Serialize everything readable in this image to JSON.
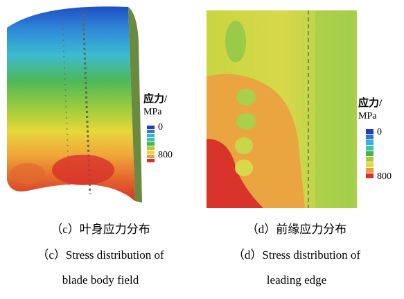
{
  "figures": [
    {
      "legend": {
        "title": "应力/",
        "unit": "MPa",
        "min": "0",
        "max": "800"
      },
      "caption_cn": "（c）叶身应力分布",
      "caption_en": [
        "（c）Stress distribution of",
        "blade body field"
      ]
    },
    {
      "legend": {
        "title": "应力/",
        "unit": "MPa",
        "min": "0",
        "max": "800"
      },
      "caption_cn": "（d）前缘应力分布",
      "caption_en": [
        "（d）Stress distribution of",
        "leading edge"
      ]
    }
  ]
}
